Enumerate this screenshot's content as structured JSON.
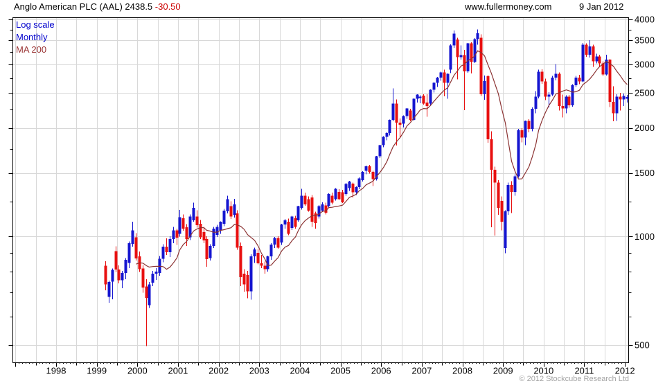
{
  "header": {
    "title_main": "Anglo American PLC (AAL) 2438.5 ",
    "title_change": "-30.50",
    "site": "www.fullermoney.com",
    "date": "9 Jan 2012"
  },
  "legend": {
    "scale": "Log scale",
    "interval": "Monthly",
    "ma": "MA 200"
  },
  "footer": {
    "copyright": "© 2012 Stockcube Research Ltd"
  },
  "colors": {
    "up": "#1515d0",
    "down": "#e81010",
    "ma_line": "#8b3232",
    "grid": "#d8d8d8",
    "axis": "#000000",
    "text": "#000000",
    "legend_blue": "#0000cc",
    "ma_label": "#993333",
    "change_red": "#cc0000",
    "copyright_gray": "#a3a3a3"
  },
  "chart_data": {
    "type": "candlestick",
    "title": "Anglo American PLC (AAL)",
    "last_price": 2438.5,
    "change": -30.5,
    "scale": "log",
    "interval": "monthly",
    "overlay": {
      "name": "MA 200",
      "kind": "sma_of_closes",
      "window_months": 10
    },
    "x_years": [
      1998,
      1999,
      2000,
      2001,
      2002,
      2003,
      2004,
      2005,
      2006,
      2007,
      2008,
      2009,
      2010,
      2011,
      2012
    ],
    "y_ticks": [
      500,
      1000,
      1500,
      2000,
      2500,
      3000,
      3500,
      4000
    ],
    "y_minor_ticks": [
      600,
      700,
      800,
      900,
      1250,
      1750,
      2250,
      2750,
      3250,
      3750
    ],
    "ylim": [
      460,
      4100
    ],
    "grid": "half-year vertical, major horizontal",
    "legend_position": "top-left",
    "candles": [
      [
        "1999-03",
        830,
        855,
        710,
        737
      ],
      [
        "1999-04",
        680,
        755,
        655,
        748
      ],
      [
        "1999-05",
        750,
        815,
        670,
        808
      ],
      [
        "1999-06",
        910,
        940,
        795,
        810
      ],
      [
        "1999-07",
        810,
        832,
        742,
        757
      ],
      [
        "1999-08",
        757,
        802,
        718,
        792
      ],
      [
        "1999-09",
        792,
        872,
        762,
        862
      ],
      [
        "1999-10",
        845,
        968,
        818,
        958
      ],
      [
        "1999-11",
        955,
        1100,
        938,
        1040
      ],
      [
        "1999-12",
        996,
        1022,
        858,
        870
      ],
      [
        "2000-01",
        880,
        908,
        798,
        812
      ],
      [
        "2000-02",
        815,
        832,
        698,
        722
      ],
      [
        "2000-03",
        726,
        762,
        497,
        675
      ],
      [
        "2000-04",
        645,
        748,
        633,
        737
      ],
      [
        "2000-05",
        745,
        802,
        728,
        788
      ],
      [
        "2000-06",
        788,
        818,
        758,
        800
      ],
      [
        "2000-07",
        793,
        882,
        778,
        868
      ],
      [
        "2000-08",
        868,
        952,
        848,
        938
      ],
      [
        "2000-09",
        938,
        988,
        888,
        905
      ],
      [
        "2000-10",
        905,
        1002,
        878,
        985
      ],
      [
        "2000-11",
        985,
        1062,
        958,
        1040
      ],
      [
        "2000-12",
        1040,
        1052,
        948,
        992
      ],
      [
        "2001-01",
        1017,
        1185,
        1000,
        1130
      ],
      [
        "2001-02",
        1123,
        1152,
        1038,
        1051
      ],
      [
        "2001-03",
        1060,
        1082,
        941,
        983
      ],
      [
        "2001-04",
        996,
        1152,
        978,
        1136
      ],
      [
        "2001-05",
        1110,
        1240,
        1098,
        1200
      ],
      [
        "2001-06",
        1136,
        1182,
        1058,
        1074
      ],
      [
        "2001-07",
        1085,
        1112,
        983,
        996
      ],
      [
        "2001-08",
        1028,
        1062,
        958,
        975
      ],
      [
        "2001-09",
        983,
        1002,
        825,
        865
      ],
      [
        "2001-10",
        872,
        952,
        858,
        941
      ],
      [
        "2001-11",
        941,
        1062,
        928,
        1051
      ],
      [
        "2001-12",
        1010,
        1077,
        998,
        1063
      ],
      [
        "2002-01",
        1040,
        1102,
        1018,
        1098
      ],
      [
        "2002-02",
        1085,
        1192,
        1068,
        1180
      ],
      [
        "2002-03",
        1174,
        1298,
        1158,
        1270
      ],
      [
        "2002-04",
        1213,
        1252,
        1118,
        1136
      ],
      [
        "2002-05",
        1148,
        1272,
        1128,
        1227
      ],
      [
        "2002-06",
        1160,
        1182,
        918,
        932
      ],
      [
        "2002-07",
        941,
        962,
        729,
        771
      ],
      [
        "2002-08",
        788,
        812,
        703,
        737
      ],
      [
        "2002-09",
        782,
        802,
        674,
        705
      ],
      [
        "2002-10",
        705,
        892,
        668,
        880
      ],
      [
        "2002-11",
        880,
        932,
        845,
        920
      ],
      [
        "2002-12",
        900,
        922,
        838,
        842
      ],
      [
        "2003-01",
        842,
        888,
        818,
        830
      ],
      [
        "2003-02",
        830,
        852,
        788,
        812
      ],
      [
        "2003-03",
        812,
        885,
        800,
        880
      ],
      [
        "2003-04",
        880,
        958,
        862,
        950
      ],
      [
        "2003-05",
        950,
        998,
        928,
        990
      ],
      [
        "2003-06",
        990,
        1002,
        925,
        932
      ],
      [
        "2003-07",
        962,
        1085,
        948,
        1080
      ],
      [
        "2003-08",
        1080,
        1118,
        1052,
        1110
      ],
      [
        "2003-09",
        1098,
        1122,
        1008,
        1017
      ],
      [
        "2003-10",
        1057,
        1142,
        1042,
        1136
      ],
      [
        "2003-11",
        1123,
        1142,
        1052,
        1063
      ],
      [
        "2003-12",
        1110,
        1218,
        1098,
        1213
      ],
      [
        "2004-01",
        1200,
        1355,
        1188,
        1298
      ],
      [
        "2004-02",
        1298,
        1322,
        1218,
        1227
      ],
      [
        "2004-03",
        1270,
        1292,
        1172,
        1180
      ],
      [
        "2004-04",
        1283,
        1302,
        1063,
        1098
      ],
      [
        "2004-05",
        1160,
        1172,
        1051,
        1090
      ],
      [
        "2004-06",
        1136,
        1222,
        1122,
        1213
      ],
      [
        "2004-07",
        1180,
        1245,
        1168,
        1227
      ],
      [
        "2004-08",
        1220,
        1242,
        1152,
        1165
      ],
      [
        "2004-09",
        1213,
        1318,
        1202,
        1312
      ],
      [
        "2004-10",
        1298,
        1322,
        1228,
        1240
      ],
      [
        "2004-11",
        1270,
        1362,
        1258,
        1355
      ],
      [
        "2004-12",
        1330,
        1352,
        1262,
        1270
      ],
      [
        "2005-01",
        1325,
        1348,
        1238,
        1245
      ],
      [
        "2005-02",
        1312,
        1408,
        1298,
        1400
      ],
      [
        "2005-03",
        1362,
        1428,
        1338,
        1420
      ],
      [
        "2005-04",
        1402,
        1412,
        1283,
        1325
      ],
      [
        "2005-05",
        1325,
        1378,
        1302,
        1371
      ],
      [
        "2005-06",
        1371,
        1458,
        1352,
        1450
      ],
      [
        "2005-07",
        1433,
        1518,
        1422,
        1510
      ],
      [
        "2005-08",
        1520,
        1572,
        1488,
        1566
      ],
      [
        "2005-09",
        1566,
        1580,
        1495,
        1510
      ],
      [
        "2005-10",
        1510,
        1522,
        1380,
        1442
      ],
      [
        "2005-11",
        1442,
        1675,
        1430,
        1670
      ],
      [
        "2005-12",
        1670,
        1795,
        1652,
        1790
      ],
      [
        "2006-01",
        1790,
        1898,
        1770,
        1890
      ],
      [
        "2006-02",
        1890,
        1945,
        1848,
        1938
      ],
      [
        "2006-03",
        1938,
        2112,
        1908,
        2105
      ],
      [
        "2006-04",
        2105,
        2577,
        2088,
        2336
      ],
      [
        "2006-05",
        2336,
        2398,
        1789,
        2070
      ],
      [
        "2006-06",
        2070,
        2125,
        1880,
        2044
      ],
      [
        "2006-07",
        2056,
        2168,
        2008,
        2160
      ],
      [
        "2006-08",
        2160,
        2270,
        2118,
        2264
      ],
      [
        "2006-09",
        2234,
        2262,
        2088,
        2105
      ],
      [
        "2006-10",
        2105,
        2418,
        2095,
        2410
      ],
      [
        "2006-11",
        2410,
        2482,
        2352,
        2475
      ],
      [
        "2006-12",
        2420,
        2462,
        2340,
        2442
      ],
      [
        "2007-01",
        2458,
        2478,
        2320,
        2336
      ],
      [
        "2007-02",
        2350,
        2480,
        2148,
        2300
      ],
      [
        "2007-03",
        2336,
        2560,
        2312,
        2553
      ],
      [
        "2007-04",
        2553,
        2678,
        2508,
        2669
      ],
      [
        "2007-05",
        2669,
        2772,
        2600,
        2760
      ],
      [
        "2007-06",
        2760,
        2862,
        2702,
        2853
      ],
      [
        "2007-07",
        2853,
        2902,
        2448,
        2669
      ],
      [
        "2007-08",
        2669,
        2832,
        2408,
        2825
      ],
      [
        "2007-09",
        2900,
        3408,
        2840,
        3390
      ],
      [
        "2007-10",
        3390,
        3725,
        3340,
        3650
      ],
      [
        "2007-11",
        3520,
        3560,
        2726,
        3140
      ],
      [
        "2007-12",
        3140,
        3385,
        3095,
        3188
      ],
      [
        "2008-01",
        3188,
        3290,
        2240,
        2870
      ],
      [
        "2008-02",
        2870,
        3445,
        2845,
        3430
      ],
      [
        "2008-03",
        3430,
        3455,
        2835,
        3050
      ],
      [
        "2008-04",
        3050,
        3548,
        3028,
        3530
      ],
      [
        "2008-05",
        3530,
        3752,
        3402,
        3660
      ],
      [
        "2008-06",
        3560,
        3640,
        2455,
        2480
      ],
      [
        "2008-07",
        2480,
        2795,
        2395,
        2700
      ],
      [
        "2008-08",
        2780,
        2800,
        1820,
        1860
      ],
      [
        "2008-09",
        1860,
        1958,
        1060,
        1530
      ],
      [
        "2008-10",
        1530,
        1562,
        1005,
        1410
      ],
      [
        "2008-11",
        1410,
        1432,
        1150,
        1200
      ],
      [
        "2008-12",
        1255,
        1292,
        1040,
        1098
      ],
      [
        "2009-01",
        928,
        1182,
        898,
        1174
      ],
      [
        "2009-02",
        1174,
        1412,
        1150,
        1390
      ],
      [
        "2009-03",
        1390,
        1425,
        1162,
        1330
      ],
      [
        "2009-04",
        1330,
        1488,
        1298,
        1470
      ],
      [
        "2009-05",
        1470,
        1988,
        1455,
        1970
      ],
      [
        "2009-06",
        1970,
        1995,
        1822,
        1880
      ],
      [
        "2009-07",
        1880,
        2098,
        1790,
        2090
      ],
      [
        "2009-08",
        2090,
        2115,
        1945,
        1990
      ],
      [
        "2009-09",
        1990,
        2282,
        1958,
        2260
      ],
      [
        "2009-10",
        2260,
        2532,
        2198,
        2440
      ],
      [
        "2009-11",
        2440,
        2905,
        2418,
        2865
      ],
      [
        "2009-12",
        2865,
        2912,
        2648,
        2690
      ],
      [
        "2010-01",
        2690,
        2740,
        2388,
        2442
      ],
      [
        "2010-02",
        2442,
        2512,
        2282,
        2475
      ],
      [
        "2010-03",
        2475,
        2788,
        2452,
        2760
      ],
      [
        "2010-04",
        2760,
        3005,
        2712,
        2825
      ],
      [
        "2010-05",
        2825,
        2852,
        2234,
        2300
      ],
      [
        "2010-06",
        2300,
        2475,
        2137,
        2264
      ],
      [
        "2010-07",
        2264,
        2465,
        2198,
        2442
      ],
      [
        "2010-08",
        2442,
        2472,
        2278,
        2310
      ],
      [
        "2010-09",
        2310,
        2645,
        2292,
        2630
      ],
      [
        "2010-10",
        2630,
        2792,
        2598,
        2760
      ],
      [
        "2010-11",
        2760,
        2805,
        2642,
        2690
      ],
      [
        "2010-12",
        2690,
        3442,
        2678,
        3400
      ],
      [
        "2011-01",
        3400,
        3432,
        3148,
        3190
      ],
      [
        "2011-02",
        3190,
        3502,
        3138,
        3365
      ],
      [
        "2011-03",
        3365,
        3402,
        2952,
        3060
      ],
      [
        "2011-04",
        3060,
        3212,
        3022,
        3155
      ],
      [
        "2011-05",
        3155,
        3192,
        2958,
        3020
      ],
      [
        "2011-06",
        3020,
        3062,
        2788,
        2815
      ],
      [
        "2011-07",
        2815,
        3190,
        2798,
        3095
      ],
      [
        "2011-08",
        3095,
        3102,
        2284,
        2365
      ],
      [
        "2011-09",
        2365,
        2612,
        2088,
        2196
      ],
      [
        "2011-10",
        2196,
        2482,
        2092,
        2442
      ],
      [
        "2011-11",
        2442,
        2502,
        2238,
        2400
      ],
      [
        "2011-12",
        2400,
        2492,
        2302,
        2455
      ],
      [
        "2012-01",
        2410,
        2468,
        2352,
        2438.5
      ]
    ]
  }
}
